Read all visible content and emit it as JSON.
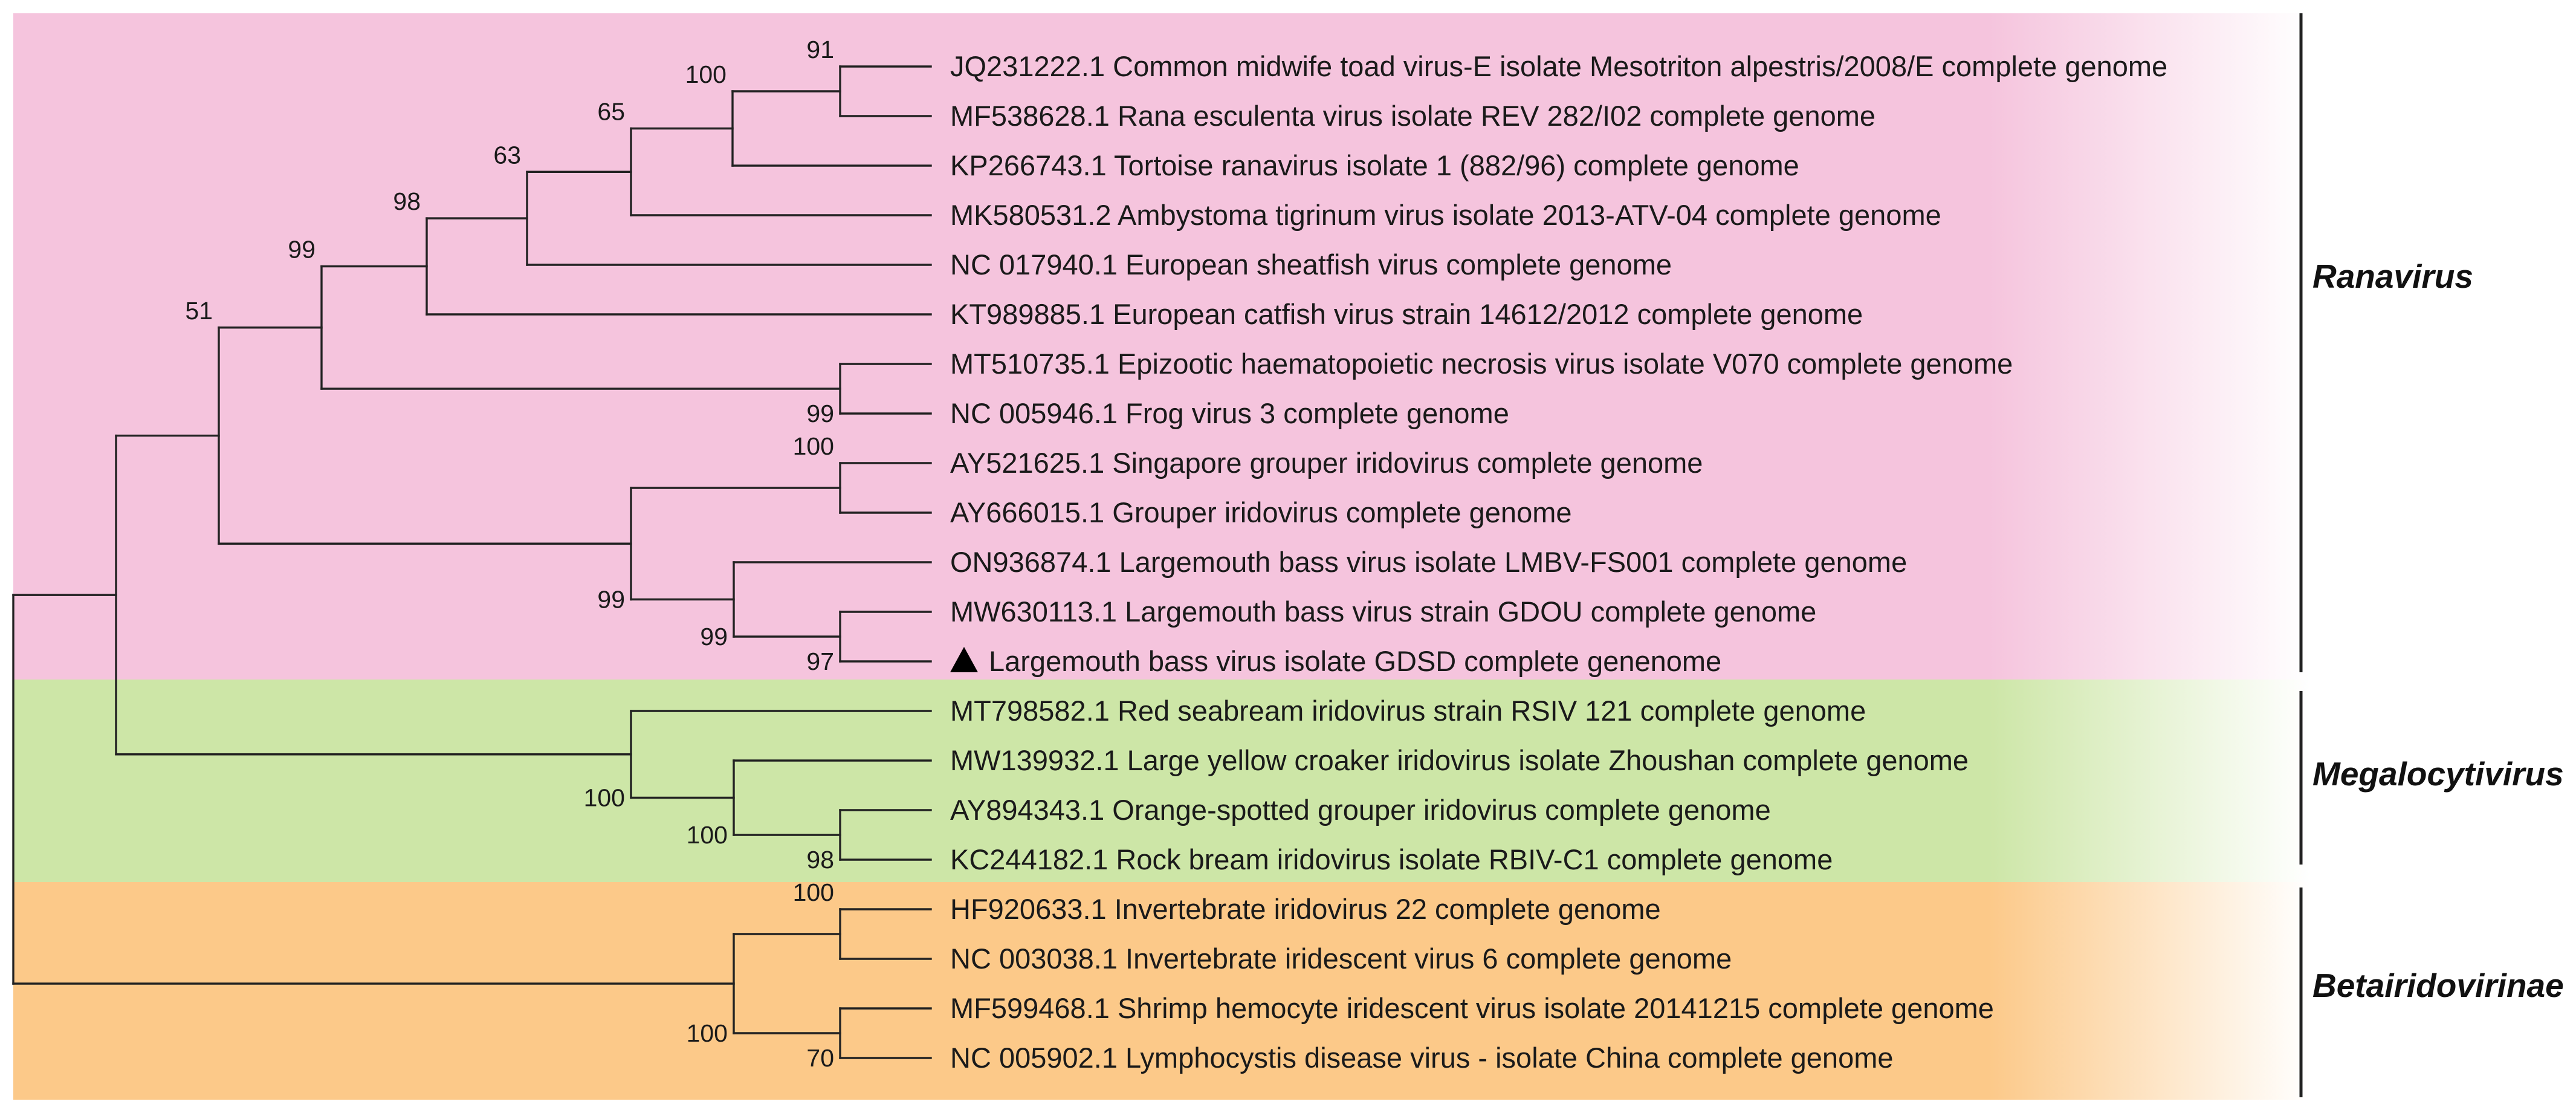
{
  "tree": {
    "tips": [
      {
        "accession": "JQ231222.1",
        "description": "Common midwife toad virus-E isolate Mesotriton alpestris/2008/E complete genome"
      },
      {
        "accession": "MF538628.1",
        "description": "Rana esculenta virus isolate REV 282/I02 complete genome"
      },
      {
        "accession": "KP266743.1",
        "description": "Tortoise ranavirus isolate 1 (882/96) complete genome"
      },
      {
        "accession": "MK580531.2",
        "description": "Ambystoma tigrinum virus isolate 2013-ATV-04 complete genome"
      },
      {
        "accession": "NC 017940.1",
        "description": "European sheatfish virus complete genome"
      },
      {
        "accession": "KT989885.1",
        "description": "European catfish virus strain 14612/2012 complete genome"
      },
      {
        "accession": "MT510735.1",
        "description": "Epizootic haematopoietic necrosis virus isolate V070 complete genome"
      },
      {
        "accession": "NC 005946.1",
        "description": "Frog virus 3 complete genome"
      },
      {
        "accession": "AY521625.1",
        "description": "Singapore grouper iridovirus complete genome"
      },
      {
        "accession": "AY666015.1",
        "description": "Grouper iridovirus complete genome"
      },
      {
        "accession": "ON936874.1",
        "description": "Largemouth bass virus isolate LMBV-FS001 complete genome"
      },
      {
        "accession": "MW630113.1",
        "description": "Largemouth bass virus strain GDOU complete genome"
      },
      {
        "accession": "",
        "description": "Largemouth bass virus isolate GDSD complete genenome",
        "marker": "black-triangle"
      },
      {
        "accession": "MT798582.1",
        "description": "Red seabream iridovirus strain RSIV 121 complete genome"
      },
      {
        "accession": "MW139932.1",
        "description": "Large yellow croaker iridovirus isolate Zhoushan complete genome"
      },
      {
        "accession": "AY894343.1",
        "description": "Orange-spotted grouper iridovirus complete genome"
      },
      {
        "accession": "KC244182.1",
        "description": "Rock bream iridovirus isolate RBIV-C1 complete genome"
      },
      {
        "accession": "HF920633.1",
        "description": "Invertebrate iridovirus 22 complete genome"
      },
      {
        "accession": "NC 003038.1",
        "description": "Invertebrate iridescent virus 6 complete genome"
      },
      {
        "accession": "MF599468.1",
        "description": "Shrimp hemocyte iridescent virus isolate 20141215 complete genome"
      },
      {
        "accession": "NC 005902.1",
        "description": "Lymphocystis disease virus - isolate China complete genome"
      }
    ],
    "nodes": [
      {
        "id": "n_cmtv_rev",
        "children": [
          0,
          1
        ],
        "bootstrap": "91"
      },
      {
        "id": "n_plus_tort",
        "children": [
          "n_cmtv_rev",
          2
        ],
        "bootstrap": "100"
      },
      {
        "id": "n_plus_atv",
        "children": [
          "n_plus_tort",
          3
        ],
        "bootstrap": "65"
      },
      {
        "id": "n_plus_esv",
        "children": [
          "n_plus_atv",
          4
        ],
        "bootstrap": "63"
      },
      {
        "id": "n_plus_ecv",
        "children": [
          "n_plus_esv",
          5
        ],
        "bootstrap": "98"
      },
      {
        "id": "n_ehnv_fv3",
        "children": [
          6,
          7
        ],
        "bootstrap": "99"
      },
      {
        "id": "n_ranav_core",
        "children": [
          "n_plus_ecv",
          "n_ehnv_fv3"
        ],
        "bootstrap": "99"
      },
      {
        "id": "n_sgiv_giv",
        "children": [
          8,
          9
        ],
        "bootstrap": "100"
      },
      {
        "id": "n_gdou_gdsd",
        "children": [
          11,
          12
        ],
        "bootstrap": "97"
      },
      {
        "id": "n_lmbv",
        "children": [
          10,
          "n_gdou_gdsd"
        ],
        "bootstrap": "99"
      },
      {
        "id": "n_grouper_lmbv",
        "children": [
          "n_sgiv_giv",
          "n_lmbv"
        ],
        "bootstrap": "99"
      },
      {
        "id": "n_ranavirus",
        "children": [
          "n_ranav_core",
          "n_grouper_lmbv"
        ],
        "bootstrap": "51"
      },
      {
        "id": "n_osgiv_rbiv",
        "children": [
          15,
          16
        ],
        "bootstrap": "98"
      },
      {
        "id": "n_lyciv",
        "children": [
          14,
          "n_osgiv_rbiv"
        ],
        "bootstrap": "100"
      },
      {
        "id": "n_megalo",
        "children": [
          13,
          "n_lyciv"
        ],
        "bootstrap": "100"
      },
      {
        "id": "n_alpha",
        "children": [
          "n_ranavirus",
          "n_megalo"
        ],
        "bootstrap": ""
      },
      {
        "id": "n_iiv",
        "children": [
          17,
          18
        ],
        "bootstrap": "100"
      },
      {
        "id": "n_shiv_lcdv",
        "children": [
          19,
          20
        ],
        "bootstrap": "70"
      },
      {
        "id": "n_beta",
        "children": [
          "n_iiv",
          "n_shiv_lcdv"
        ],
        "bootstrap": "100"
      },
      {
        "id": "n_root",
        "children": [
          "n_alpha",
          "n_beta"
        ],
        "bootstrap": ""
      }
    ]
  },
  "clades": [
    {
      "name": "Ranavirus",
      "color": "#f5c4dd"
    },
    {
      "name": "Megalocytivirus",
      "color": "#cde6a7"
    },
    {
      "name": "Betairidovirinae",
      "color": "#fcc989"
    }
  ],
  "marker": {
    "shape": "black-triangle",
    "color": "#000000"
  },
  "colors": {
    "line": "#222222",
    "text": "#1a1a1a"
  }
}
